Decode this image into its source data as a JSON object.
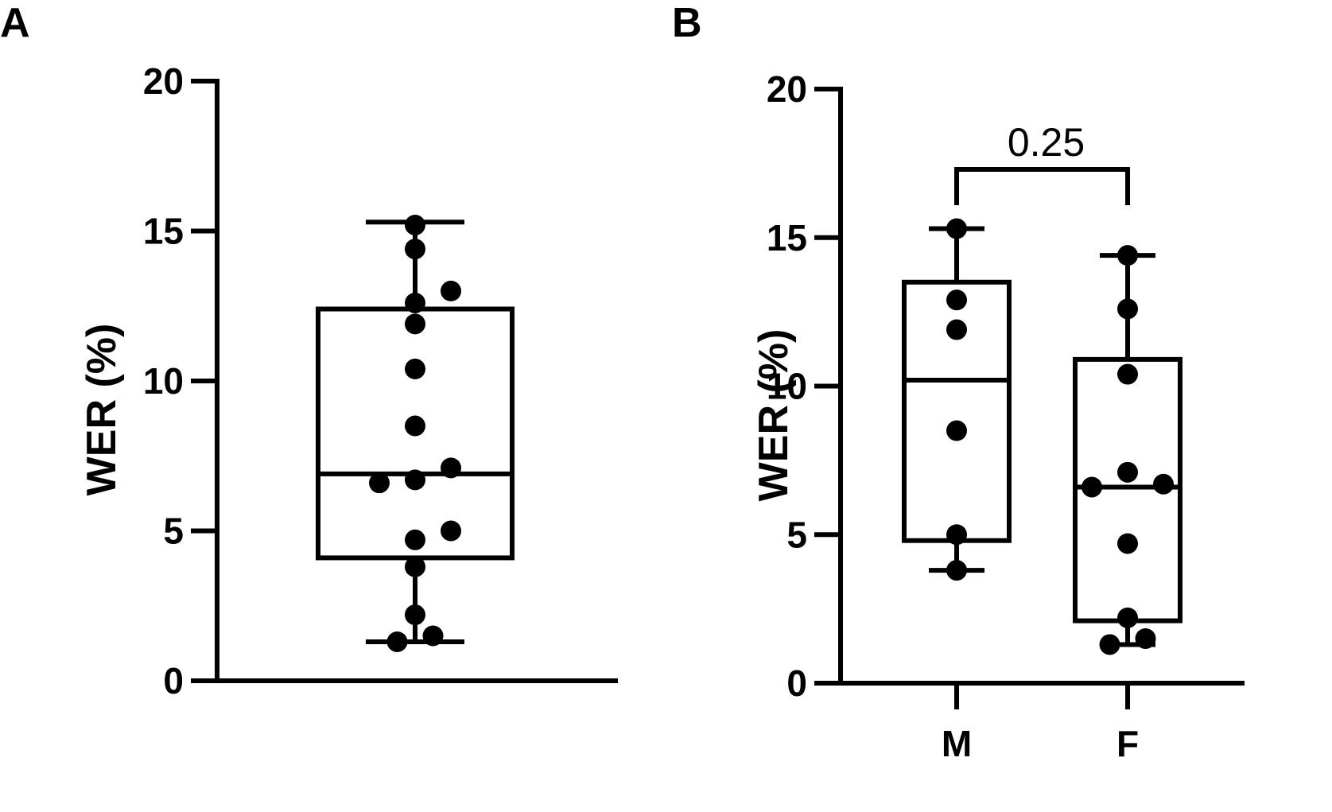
{
  "chart_data": [
    {
      "panel": "A",
      "type": "box",
      "ylabel": "WER (%)",
      "ylim": [
        0,
        20
      ],
      "yticks": [
        "0",
        "5",
        "10",
        "15",
        "20"
      ],
      "categories": [
        ""
      ],
      "boxes": [
        {
          "name": "",
          "min": 1.3,
          "q1": 4.1,
          "median": 6.9,
          "q3": 12.4,
          "max": 15.3,
          "points": [
            {
              "dx": 0,
              "y": 15.2
            },
            {
              "dx": 0,
              "y": 14.4
            },
            {
              "dx": 1,
              "y": 13.0
            },
            {
              "dx": 0,
              "y": 12.6
            },
            {
              "dx": 0,
              "y": 11.9
            },
            {
              "dx": 0,
              "y": 10.4
            },
            {
              "dx": 0,
              "y": 8.5
            },
            {
              "dx": 1,
              "y": 7.1
            },
            {
              "dx": -1,
              "y": 6.6
            },
            {
              "dx": 0,
              "y": 6.7
            },
            {
              "dx": 1,
              "y": 5.0
            },
            {
              "dx": 0,
              "y": 4.7
            },
            {
              "dx": 0,
              "y": 3.8
            },
            {
              "dx": 0,
              "y": 2.2
            },
            {
              "dx": 0.5,
              "y": 1.5
            },
            {
              "dx": -0.5,
              "y": 1.3
            }
          ]
        }
      ]
    },
    {
      "panel": "B",
      "type": "box",
      "ylabel": "WER (%)",
      "ylim": [
        0,
        20
      ],
      "yticks": [
        "0",
        "5",
        "10",
        "15",
        "20"
      ],
      "categories": [
        "M",
        "F"
      ],
      "boxes": [
        {
          "name": "M",
          "min": 3.8,
          "q1": 4.8,
          "median": 10.2,
          "q3": 13.5,
          "max": 15.3,
          "points": [
            {
              "dx": 0,
              "y": 15.3
            },
            {
              "dx": 0,
              "y": 12.9
            },
            {
              "dx": 0,
              "y": 11.9
            },
            {
              "dx": 0,
              "y": 8.5
            },
            {
              "dx": 0,
              "y": 5.0
            },
            {
              "dx": 0,
              "y": 3.8
            }
          ]
        },
        {
          "name": "F",
          "min": 1.3,
          "q1": 2.1,
          "median": 6.6,
          "q3": 10.9,
          "max": 14.4,
          "points": [
            {
              "dx": 0,
              "y": 14.4
            },
            {
              "dx": 0,
              "y": 12.6
            },
            {
              "dx": 0,
              "y": 10.4
            },
            {
              "dx": 0,
              "y": 7.1
            },
            {
              "dx": -1,
              "y": 6.6
            },
            {
              "dx": 1,
              "y": 6.7
            },
            {
              "dx": 0,
              "y": 4.7
            },
            {
              "dx": 0,
              "y": 2.2
            },
            {
              "dx": 0.5,
              "y": 1.5
            },
            {
              "dx": -0.5,
              "y": 1.3
            }
          ]
        }
      ],
      "annotation": {
        "text": "0.25",
        "between": [
          "M",
          "F"
        ]
      }
    }
  ]
}
